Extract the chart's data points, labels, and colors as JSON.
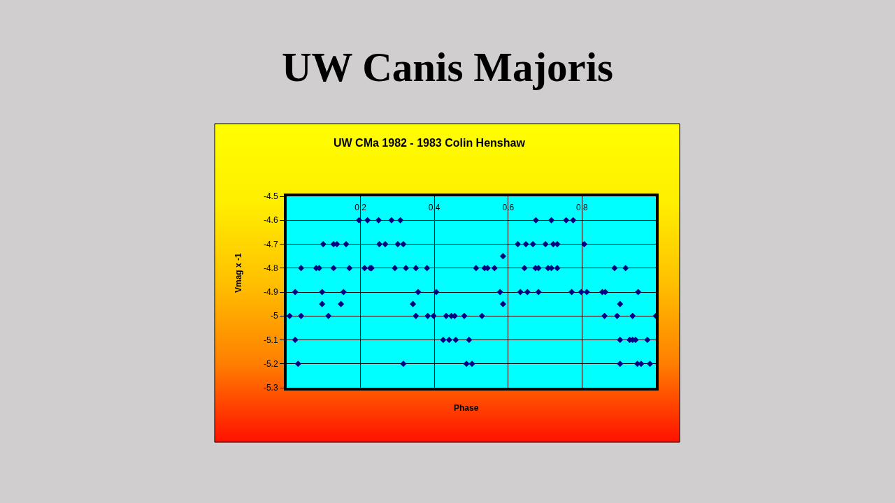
{
  "chart_data": {
    "type": "scatter",
    "title": "UW Canis Majoris",
    "subtitle": "UW CMa 1982 - 1983 Colin Henshaw",
    "xlabel": "Phase",
    "ylabel": "Vmag x -1",
    "x": [
      0.196,
      0.219,
      0.249,
      0.284,
      0.308,
      0.675,
      0.717,
      0.757,
      0.776,
      0.099,
      0.127,
      0.136,
      0.161,
      0.251,
      0.267,
      0.301,
      0.316,
      0.626,
      0.648,
      0.667,
      0.701,
      0.722,
      0.733,
      0.806,
      0.586,
      0.039,
      0.08,
      0.088,
      0.127,
      0.17,
      0.211,
      0.226,
      0.23,
      0.293,
      0.323,
      0.35,
      0.38,
      0.513,
      0.536,
      0.544,
      0.563,
      0.644,
      0.674,
      0.682,
      0.708,
      0.717,
      0.733,
      0.888,
      0.918,
      0.023,
      0.096,
      0.154,
      0.356,
      0.405,
      0.578,
      0.633,
      0.652,
      0.682,
      0.772,
      0.798,
      0.813,
      0.855,
      0.863,
      0.952,
      0.096,
      0.147,
      0.342,
      0.586,
      0.903,
      0.008,
      0.039,
      0.113,
      0.35,
      0.382,
      0.398,
      0.432,
      0.446,
      0.455,
      0.481,
      0.529,
      0.861,
      0.895,
      0.937,
      1.0,
      0.023,
      0.424,
      0.44,
      0.458,
      0.494,
      0.903,
      0.929,
      0.937,
      0.945,
      0.977,
      0.031,
      0.316,
      0.487,
      0.502,
      0.903,
      0.95,
      0.96,
      0.984
    ],
    "values": [
      -4.6,
      -4.6,
      -4.6,
      -4.6,
      -4.6,
      -4.6,
      -4.6,
      -4.6,
      -4.6,
      -4.7,
      -4.7,
      -4.7,
      -4.7,
      -4.7,
      -4.7,
      -4.7,
      -4.7,
      -4.7,
      -4.7,
      -4.7,
      -4.7,
      -4.7,
      -4.7,
      -4.7,
      -4.75,
      -4.8,
      -4.8,
      -4.8,
      -4.8,
      -4.8,
      -4.8,
      -4.8,
      -4.8,
      -4.8,
      -4.8,
      -4.8,
      -4.8,
      -4.8,
      -4.8,
      -4.8,
      -4.8,
      -4.8,
      -4.8,
      -4.8,
      -4.8,
      -4.8,
      -4.8,
      -4.8,
      -4.8,
      -4.9,
      -4.9,
      -4.9,
      -4.9,
      -4.9,
      -4.9,
      -4.9,
      -4.9,
      -4.9,
      -4.9,
      -4.9,
      -4.9,
      -4.9,
      -4.9,
      -4.9,
      -4.95,
      -4.95,
      -4.95,
      -4.95,
      -4.95,
      -5.0,
      -5.0,
      -5.0,
      -5.0,
      -5.0,
      -5.0,
      -5.0,
      -5.0,
      -5.0,
      -5.0,
      -5.0,
      -5.0,
      -5.0,
      -5.0,
      -5.0,
      -5.1,
      -5.1,
      -5.1,
      -5.1,
      -5.1,
      -5.1,
      -5.1,
      -5.1,
      -5.1,
      -5.1,
      -5.2,
      -5.2,
      -5.2,
      -5.2,
      -5.2,
      -5.2,
      -5.2,
      -5.2
    ],
    "color": "#000080",
    "marker": "diamond",
    "xlim": [
      0,
      1
    ],
    "xticks": [
      0.2,
      0.4,
      0.6,
      0.8
    ],
    "ylim": [
      -5.3,
      -4.5
    ],
    "yticks": [
      -4.5,
      -4.6,
      -4.7,
      -4.8,
      -4.9,
      -5,
      -5.1,
      -5.2,
      -5.3
    ],
    "grid": true
  }
}
